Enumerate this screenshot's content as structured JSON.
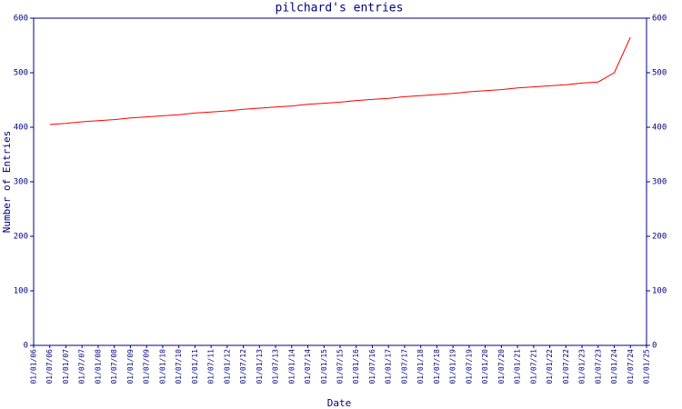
{
  "chart_data": {
    "type": "line",
    "title": "pilchard's entries",
    "x_label": "Date",
    "y_label": "Number of Entries",
    "categories": [
      "01/01/06",
      "01/07/06",
      "01/01/07",
      "01/07/07",
      "01/01/08",
      "01/07/08",
      "01/01/09",
      "01/07/09",
      "01/01/10",
      "01/07/10",
      "01/01/11",
      "01/07/11",
      "01/01/12",
      "01/07/12",
      "01/01/13",
      "01/07/13",
      "01/01/14",
      "01/07/14",
      "01/01/15",
      "01/07/15",
      "01/01/16",
      "01/07/16",
      "01/01/17",
      "01/07/17",
      "01/01/18",
      "01/07/18",
      "01/01/19",
      "01/07/19",
      "01/01/20",
      "01/07/20",
      "01/01/21",
      "01/07/21",
      "01/01/22",
      "01/07/22",
      "01/01/23",
      "01/07/23",
      "01/01/24",
      "01/07/24",
      "01/01/25"
    ],
    "series": [
      {
        "name": "pilchard",
        "color": "#ff0000",
        "values": [
          null,
          405,
          407,
          410,
          412,
          414,
          417,
          419,
          421,
          423,
          426,
          428,
          430,
          433,
          435,
          437,
          439,
          442,
          444,
          446,
          449,
          451,
          453,
          456,
          458,
          460,
          462,
          465,
          467,
          469,
          472,
          474,
          476,
          478,
          481,
          483,
          500,
          565,
          null
        ]
      }
    ],
    "ylim": [
      0,
      600
    ],
    "yticks": [
      0,
      100,
      200,
      300,
      400,
      500,
      600
    ],
    "y2lim": [
      0,
      600
    ],
    "y2ticks": [
      0,
      100,
      200,
      300,
      400,
      500,
      600
    ],
    "axis_color": "#000080"
  }
}
